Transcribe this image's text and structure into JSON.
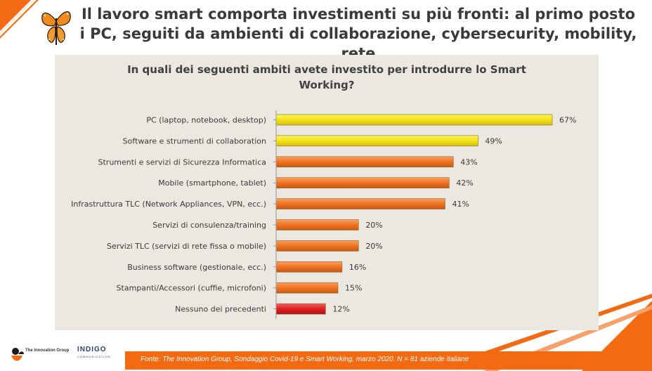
{
  "slide": {
    "title": "Il lavoro smart comporta investimenti su più fronti: al primo posto i PC, seguiti da ambienti di collaborazione, cybersecurity, mobility, rete",
    "source": "Fonte: The Innovation Group, Sondaggio Covid-19 e Smart Working, marzo 2020. N = 81  aziende italiane",
    "logo_tig_text": "The Innovation Group",
    "logo_indigo_text": "INDIGO",
    "logo_indigo_sub": "COMMUNICATION",
    "accent_color": "#f26a12"
  },
  "chart_data": {
    "type": "bar",
    "orientation": "horizontal",
    "title": "In quali dei seguenti ambiti avete investito per introdurre lo Smart Working?",
    "categories": [
      "PC (laptop, notebook, desktop)",
      "Software e strumenti di collaboration",
      "Strumenti e servizi di Sicurezza Informatica",
      "Mobile (smartphone, tablet)",
      "Infrastruttura TLC (Network Appliances, VPN, ecc.)",
      "Servizi di consulenza/training",
      "Servizi TLC (servizi di rete fissa o mobile)",
      "Business software (gestionale, ecc.)",
      "Stampanti/Accessori (cuffie, microfoni)",
      "Nessuno dei precedenti"
    ],
    "values": [
      67,
      49,
      43,
      42,
      41,
      20,
      20,
      16,
      15,
      12
    ],
    "value_labels": [
      "67%",
      "49%",
      "43%",
      "42%",
      "41%",
      "20%",
      "20%",
      "16%",
      "15%",
      "12%"
    ],
    "bar_colors": [
      "#f5e81c",
      "#f5d21c",
      "#ee7322",
      "#ee7322",
      "#ee7322",
      "#ee7322",
      "#ee7322",
      "#ee7322",
      "#ee7322",
      "#e02020"
    ],
    "xlim": [
      0,
      70
    ],
    "grid": false,
    "legend": "none"
  }
}
